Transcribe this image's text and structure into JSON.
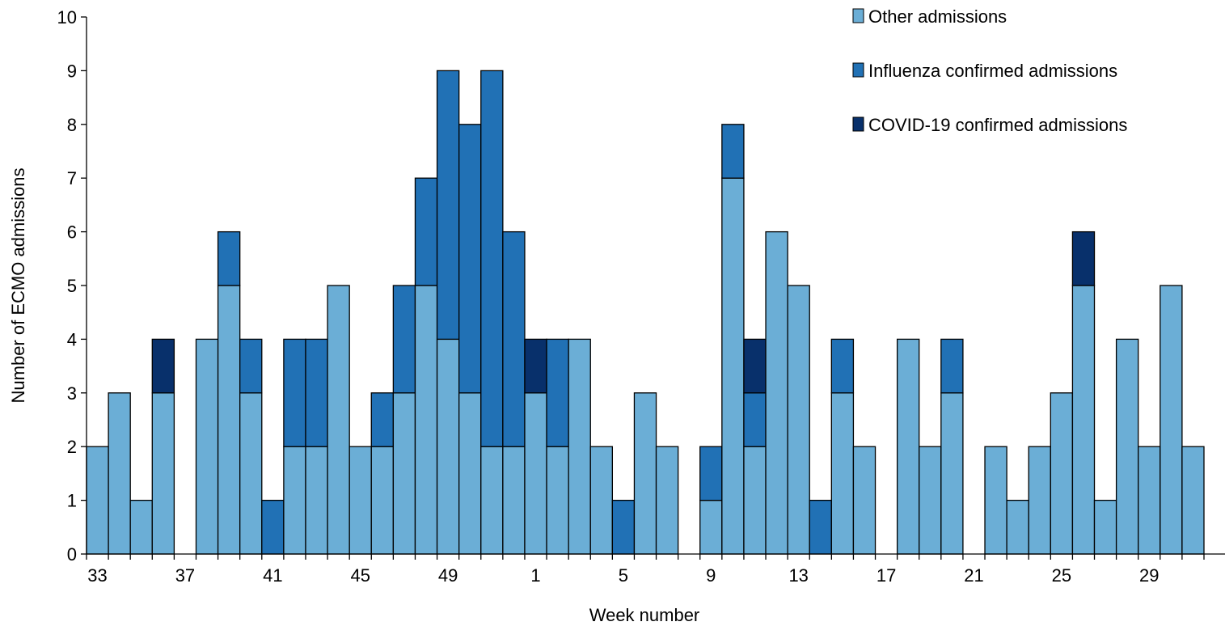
{
  "chart_data": {
    "type": "bar",
    "stacked": true,
    "xlabel": "Week number",
    "ylabel": "Number of ECMO admissions",
    "ylim": [
      0,
      10
    ],
    "yticks": [
      0,
      1,
      2,
      3,
      4,
      5,
      6,
      7,
      8,
      9,
      10
    ],
    "categories": [
      "33",
      "34",
      "35",
      "36",
      "37",
      "38",
      "39",
      "40",
      "41",
      "42",
      "43",
      "44",
      "45",
      "46",
      "47",
      "48",
      "49",
      "50",
      "51",
      "52",
      "1",
      "2",
      "3",
      "4",
      "5",
      "6",
      "7",
      "8",
      "9",
      "10",
      "11",
      "12",
      "13",
      "14",
      "15",
      "16",
      "17",
      "18",
      "19",
      "20",
      "21",
      "22",
      "23",
      "24",
      "25",
      "26",
      "27",
      "28",
      "29",
      "30",
      "31"
    ],
    "x_tick_labels": [
      "33",
      "37",
      "41",
      "45",
      "49",
      "1",
      "5",
      "9",
      "13",
      "17",
      "21",
      "25",
      "29"
    ],
    "series": [
      {
        "name": "Other admissions",
        "color": "#6baed6",
        "values": [
          2,
          3,
          1,
          3,
          0,
          4,
          5,
          3,
          0,
          2,
          2,
          5,
          2,
          2,
          3,
          5,
          4,
          3,
          2,
          2,
          3,
          2,
          4,
          2,
          0,
          3,
          2,
          0,
          1,
          7,
          2,
          6,
          5,
          0,
          3,
          2,
          0,
          4,
          2,
          3,
          0,
          2,
          1,
          2,
          3,
          5,
          1,
          4,
          2,
          5,
          2
        ]
      },
      {
        "name": "Influenza confirmed admissions",
        "color": "#2171b5",
        "values": [
          0,
          0,
          0,
          0,
          0,
          0,
          1,
          1,
          1,
          2,
          2,
          0,
          0,
          1,
          2,
          2,
          5,
          5,
          7,
          4,
          0,
          2,
          0,
          0,
          1,
          0,
          0,
          0,
          1,
          1,
          1,
          0,
          0,
          1,
          1,
          0,
          0,
          0,
          0,
          1,
          0,
          0,
          0,
          0,
          0,
          0,
          0,
          0,
          0,
          0,
          0
        ]
      },
      {
        "name": "COVID-19 confirmed admissions",
        "color": "#08306b",
        "values": [
          0,
          0,
          0,
          1,
          0,
          0,
          0,
          0,
          0,
          0,
          0,
          0,
          0,
          0,
          0,
          0,
          0,
          0,
          0,
          0,
          1,
          0,
          0,
          0,
          0,
          0,
          0,
          0,
          0,
          0,
          1,
          0,
          0,
          0,
          0,
          0,
          0,
          0,
          0,
          0,
          0,
          0,
          0,
          0,
          0,
          1,
          0,
          0,
          0,
          0,
          0
        ]
      }
    ],
    "legend": "top-right",
    "grid": false
  }
}
